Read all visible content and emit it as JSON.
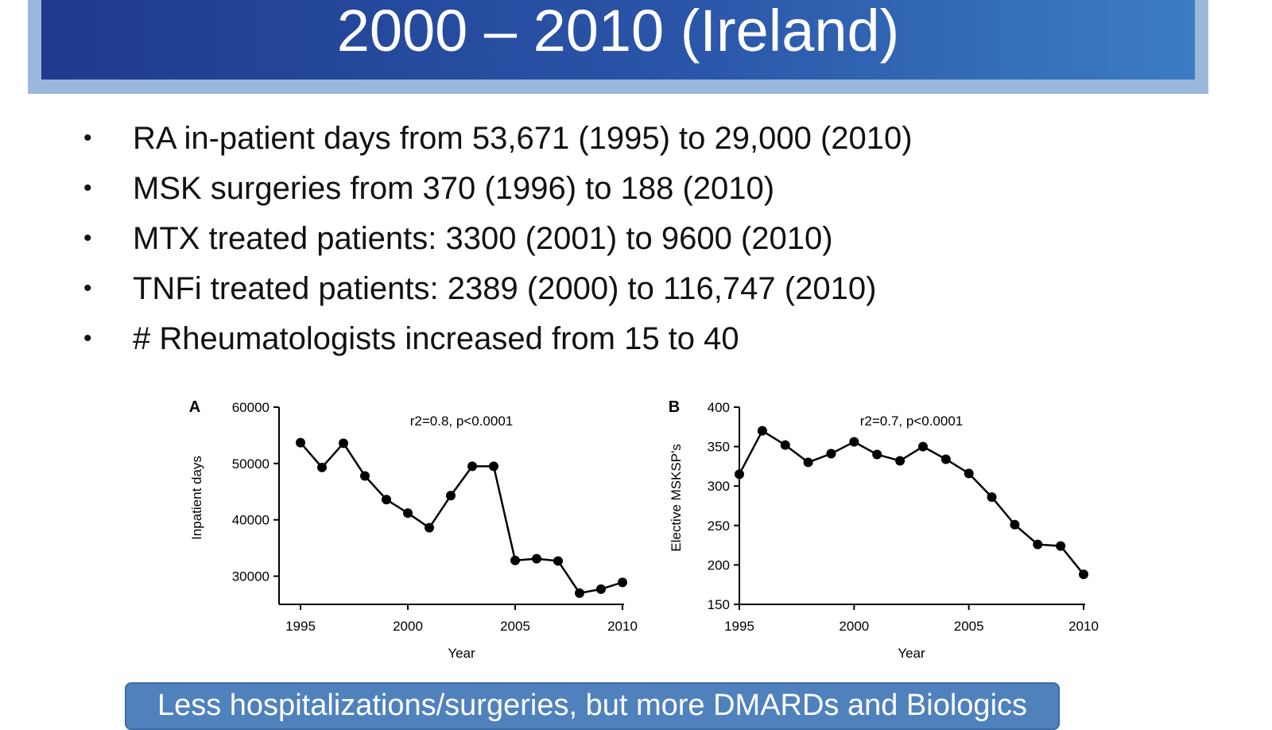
{
  "slide": {
    "title": "2000 – 2010 (Ireland)",
    "bullets": [
      "RA in-patient days from 53,671 (1995) to 29,000 (2010)",
      "MSK surgeries  from 370 (1996) to 188 (2010)",
      "MTX treated patients: 3300 (2001) to 9600 (2010)",
      "TNFi treated patients: 2389 (2000) to 116,747 (2010)",
      "# Rheumatologists increased from 15 to 40"
    ],
    "bullet_symbol": "•",
    "conclusion": "Less hospitalizations/surgeries, but more DMARDs and Biologics"
  },
  "colors": {
    "title_bar": "#2a55a8",
    "title_frame": "#9bb7dc",
    "conclusion_box": "#4f81bd"
  },
  "chart_data": [
    {
      "type": "line",
      "panel_label": "A",
      "annotation": "r2=0.8, p<0.0001",
      "xlabel": "Year",
      "ylabel": "Inpatient days",
      "xlim": [
        1995,
        2010
      ],
      "ylim": [
        25000,
        60000
      ],
      "xticks": [
        1995,
        2000,
        2005,
        2010
      ],
      "yticks": [
        30000,
        40000,
        50000,
        60000
      ],
      "x": [
        1995,
        1996,
        1997,
        1998,
        1999,
        2000,
        2001,
        2002,
        2003,
        2004,
        2005,
        2006,
        2007,
        2008,
        2009,
        2010
      ],
      "values": [
        53700,
        49300,
        53600,
        47800,
        43600,
        41200,
        38600,
        44300,
        49500,
        49500,
        32800,
        33100,
        32700,
        27000,
        27700,
        28900
      ]
    },
    {
      "type": "line",
      "panel_label": "B",
      "annotation": "r2=0.7, p<0.0001",
      "xlabel": "Year",
      "ylabel": "Elective MSKSP's",
      "xlim": [
        1995,
        2010
      ],
      "ylim": [
        150,
        400
      ],
      "xticks": [
        1995,
        2000,
        2005,
        2010
      ],
      "yticks": [
        150,
        200,
        250,
        300,
        350,
        400
      ],
      "x": [
        1995,
        1996,
        1997,
        1998,
        1999,
        2000,
        2001,
        2002,
        2003,
        2004,
        2005,
        2006,
        2007,
        2008,
        2009,
        2010
      ],
      "values": [
        315,
        370,
        352,
        330,
        341,
        356,
        340,
        332,
        350,
        334,
        316,
        286,
        251,
        226,
        224,
        188
      ]
    }
  ]
}
